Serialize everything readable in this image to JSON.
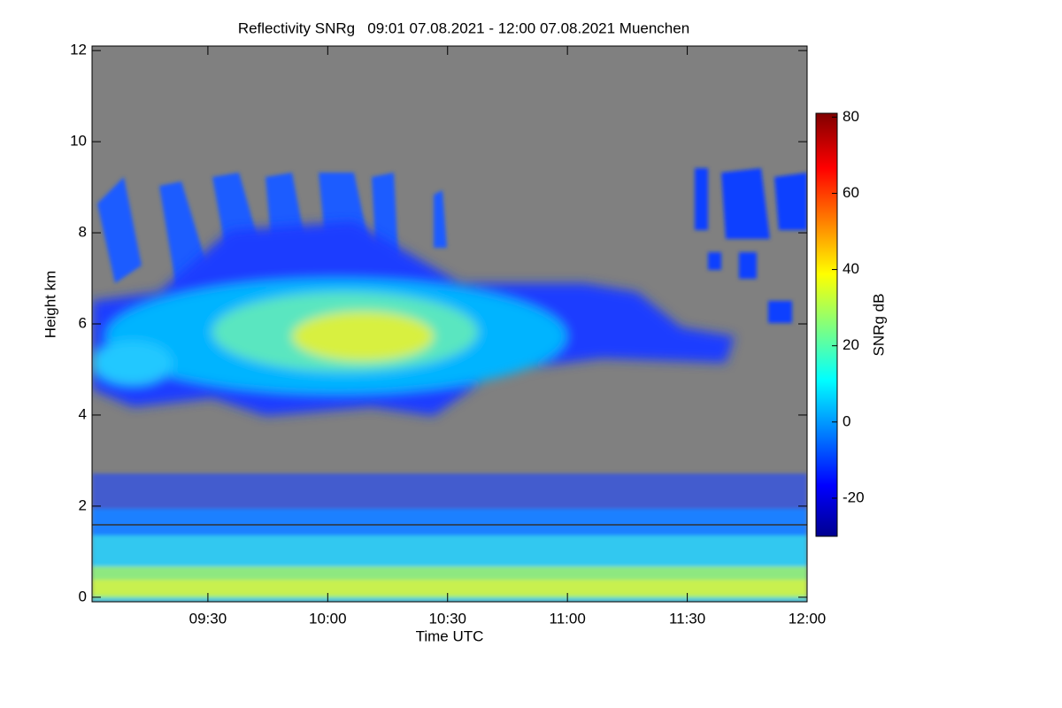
{
  "chart_data": {
    "type": "heatmap",
    "title": "Reflectivity SNRg   09:01 07.08.2021 - 12:00 07.08.2021 Muenchen",
    "x_label": "Time UTC",
    "y_label": "Height km",
    "colorbar_label": "SNRg dB",
    "xlim": [
      541,
      720
    ],
    "xticks": [
      {
        "value": 570,
        "label": "09:30"
      },
      {
        "value": 600,
        "label": "10:00"
      },
      {
        "value": 630,
        "label": "10:30"
      },
      {
        "value": 660,
        "label": "11:00"
      },
      {
        "value": 690,
        "label": "11:30"
      },
      {
        "value": 720,
        "label": "12:00"
      }
    ],
    "ylim": [
      -0.1,
      12.1
    ],
    "yticks": [
      0,
      2,
      4,
      6,
      8,
      10,
      12
    ],
    "clim": [
      -30,
      81
    ],
    "cticks": [
      -20,
      0,
      20,
      40,
      60,
      80
    ],
    "background_color": "#808080"
  }
}
